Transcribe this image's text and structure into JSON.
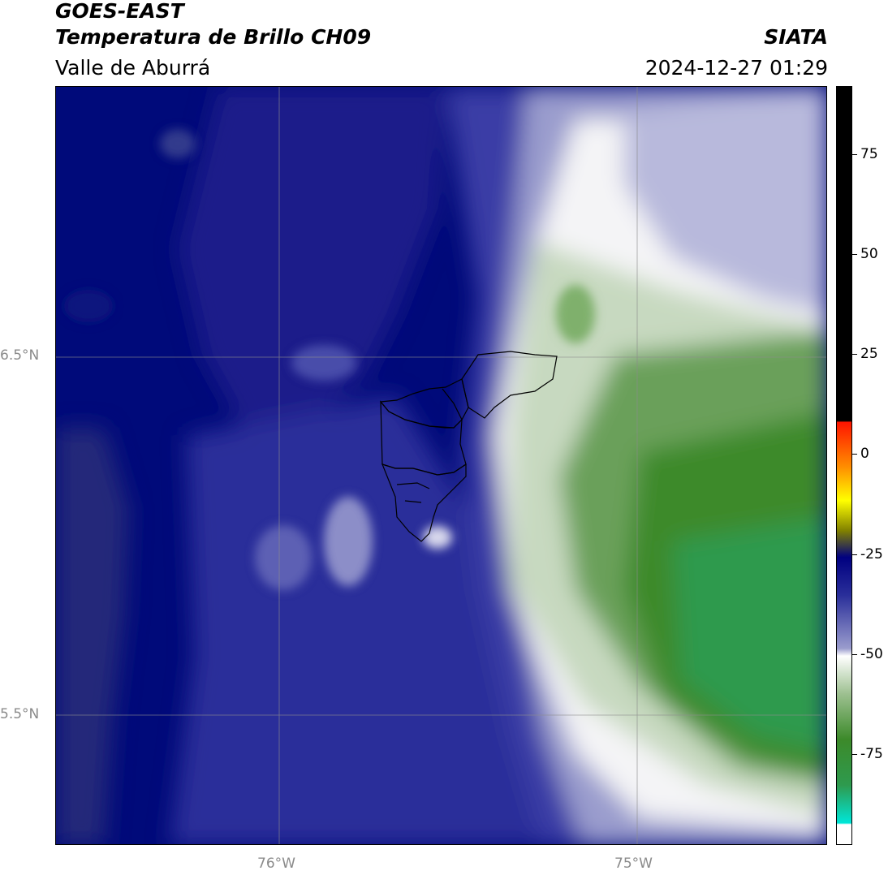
{
  "header": {
    "title": "GOES-EAST",
    "product": "Temperatura de Brillo CH09",
    "region": "Valle de Aburrá",
    "organization": "SIATA",
    "timestamp": "2024-12-27 01:29"
  },
  "map": {
    "lat_labels": [
      "6.5°N",
      "5.5°N"
    ],
    "lon_labels": [
      "76°W",
      "75°W"
    ],
    "colors": {
      "deep_navy": "#000a7a",
      "navy": "#1c1f8a",
      "blue": "#3a3ea6",
      "lavender": "#9a9ccd",
      "white": "#f7f7f7",
      "pale_green": "#c7d9c0",
      "green": "#6aa05a",
      "dark_green": "#3c8a2a",
      "teal_green": "#2e9a4e",
      "boundary": "#000000",
      "gridline": "#8c8c8c"
    }
  },
  "colorbar": {
    "tick_labels": [
      "75",
      "50",
      "25",
      "0",
      "-25",
      "-50",
      "-75"
    ],
    "colors": [
      "#000000",
      "#ff1500",
      "#ff8c00",
      "#ffff00",
      "#808000",
      "#000080",
      "#ffffff",
      "#3c8a2a",
      "#00e6d8"
    ]
  }
}
